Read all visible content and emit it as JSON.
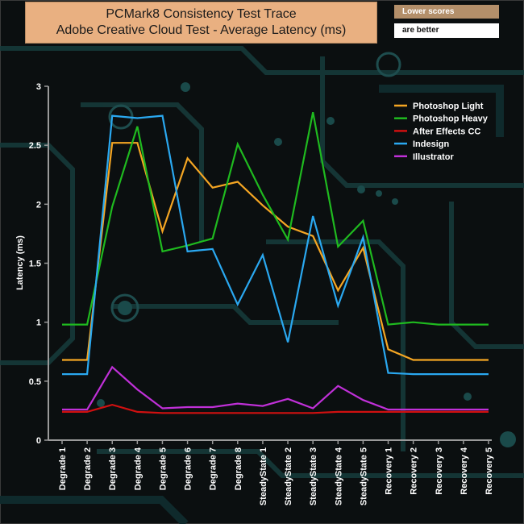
{
  "header": {
    "title_line1": "PCMark8 Consistency Test Trace",
    "title_line2": "Adobe Creative Cloud Test -  Average Latency (ms)",
    "note_line1": "Lower scores",
    "note_line2": "are better"
  },
  "colors": {
    "axis": "#9a9a9a",
    "text": "#ffffff"
  },
  "chart_data": {
    "type": "line",
    "title": "PCMark8 Consistency Test Trace - Adobe Creative Cloud Test - Average Latency (ms)",
    "xlabel": "",
    "ylabel": "Latency (ms)",
    "ylim": [
      0,
      3
    ],
    "yticks": [
      "0",
      "0.5",
      "1",
      "1.5",
      "2",
      "2.5",
      "3"
    ],
    "ytick_values": [
      0,
      0.5,
      1,
      1.5,
      2,
      2.5,
      3
    ],
    "grid": false,
    "legend_position": "top-right",
    "categories": [
      "Degrade 1",
      "Degrade 2",
      "Degrade 3",
      "Degrade 4",
      "Degrade 5",
      "Degrade 6",
      "Degrade 7",
      "Degrade 8",
      "SteadyState 1",
      "SteadyState 2",
      "SteadyState 3",
      "SteadyState 4",
      "SteadyState 5",
      "Recovery 1",
      "Recovery 2",
      "Recovery 3",
      "Recovery 4",
      "Recovery 5"
    ],
    "series": [
      {
        "name": "Photoshop Light",
        "color": "#f5a623",
        "values": [
          0.68,
          0.68,
          2.52,
          2.52,
          1.77,
          2.39,
          2.14,
          2.19,
          1.99,
          1.81,
          1.73,
          1.27,
          1.63,
          0.77,
          0.68,
          0.68,
          0.68,
          0.68
        ]
      },
      {
        "name": " Photoshop Heavy",
        "color": "#1fba1f",
        "values": [
          0.98,
          0.98,
          1.98,
          2.66,
          1.6,
          1.65,
          1.71,
          2.51,
          2.08,
          1.7,
          2.78,
          1.64,
          1.86,
          0.98,
          1.0,
          0.98,
          0.98,
          0.98
        ]
      },
      {
        "name": "After Effects CC",
        "color": "#d01010",
        "values": [
          0.24,
          0.24,
          0.3,
          0.24,
          0.23,
          0.23,
          0.23,
          0.23,
          0.23,
          0.23,
          0.23,
          0.24,
          0.24,
          0.24,
          0.24,
          0.24,
          0.24,
          0.24
        ]
      },
      {
        "name": "Indesign",
        "color": "#2aa8f0",
        "values": [
          0.56,
          0.56,
          2.75,
          2.73,
          2.75,
          1.6,
          1.62,
          1.15,
          1.57,
          0.83,
          1.9,
          1.14,
          1.72,
          0.57,
          0.56,
          0.56,
          0.56,
          0.56
        ]
      },
      {
        "name": "Illustrator",
        "color": "#c030d8",
        "values": [
          0.26,
          0.26,
          0.62,
          0.43,
          0.27,
          0.28,
          0.28,
          0.31,
          0.29,
          0.35,
          0.27,
          0.46,
          0.34,
          0.26,
          0.26,
          0.26,
          0.26,
          0.26
        ]
      }
    ]
  }
}
